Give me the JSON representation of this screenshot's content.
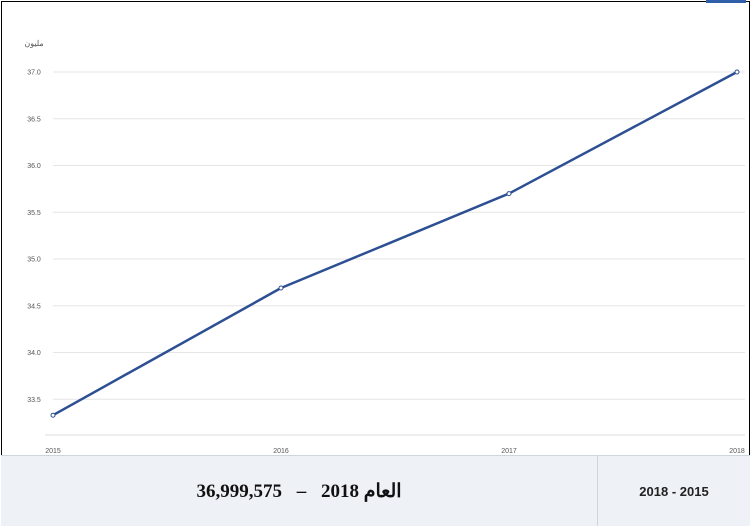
{
  "chart_data": {
    "type": "line",
    "ylabel": "مليون",
    "categories": [
      "2015",
      "2016",
      "2017",
      "2018"
    ],
    "series": [
      {
        "values": [
          33.33,
          34.69,
          35.7,
          37.0
        ]
      }
    ],
    "ylim": [
      33.3,
      37.0
    ],
    "yticks": [
      "37.0",
      "36.5",
      "36.0",
      "35.5",
      "35.0",
      "34.5",
      "34.0",
      "33.5"
    ],
    "grid": true,
    "line_color": "#2d4f93"
  },
  "footer": {
    "summary_prefix": "العام 2018",
    "summary_dash": "–",
    "summary_value": "36,999,575",
    "range_label": "2018 - 2015"
  }
}
